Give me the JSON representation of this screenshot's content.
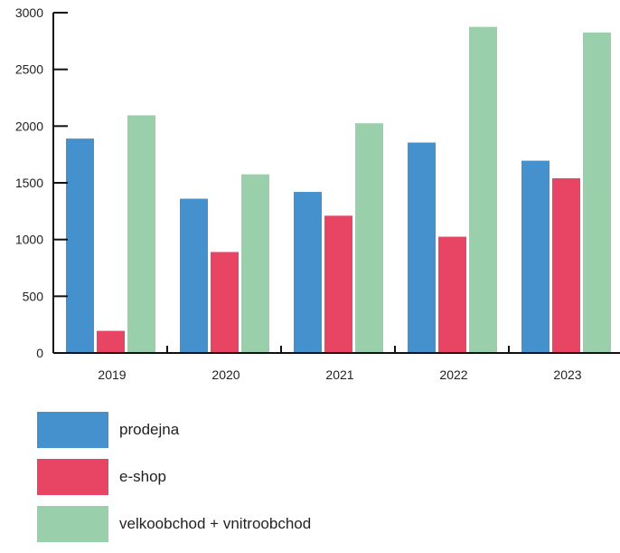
{
  "chart_data": {
    "type": "bar",
    "categories": [
      "2019",
      "2020",
      "2021",
      "2022",
      "2023"
    ],
    "series": [
      {
        "name": "prodejna",
        "color": "#4591cd",
        "values": [
          1890,
          1360,
          1420,
          1855,
          1695
        ]
      },
      {
        "name": "e-shop",
        "color": "#e84464",
        "values": [
          195,
          890,
          1210,
          1025,
          1540
        ]
      },
      {
        "name": "velkoobchod + vnitroobchod",
        "color": "#99cfab",
        "values": [
          2095,
          1575,
          2025,
          2875,
          2825
        ]
      }
    ],
    "y_ticks": [
      "0",
      "500",
      "1000",
      "1500",
      "2000",
      "2500",
      "3000"
    ],
    "ylim": [
      0,
      3000
    ],
    "legend_position": "bottom-left",
    "grid": false
  }
}
